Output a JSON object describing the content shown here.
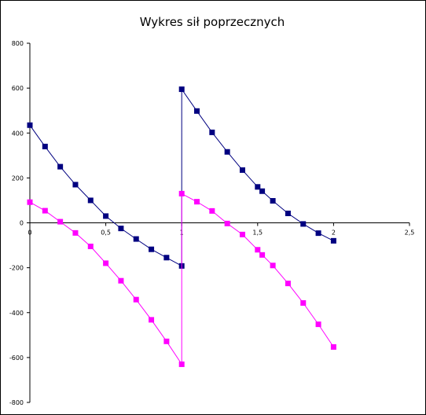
{
  "chart_data": {
    "type": "line",
    "title": "Wykres sił poprzecznych",
    "xlabel": "",
    "ylabel": "",
    "xlim": [
      0,
      2.5
    ],
    "ylim": [
      -800,
      800
    ],
    "x_ticks": [
      0,
      0.5,
      1,
      1.5,
      2,
      2.5
    ],
    "x_tick_labels": [
      "0",
      "0,5",
      "1",
      "1,5",
      "2",
      "2,5"
    ],
    "y_ticks": [
      800,
      600,
      400,
      200,
      0,
      -200,
      -400,
      -600,
      -800
    ],
    "y_tick_labels": [
      "800",
      "600",
      "400",
      "200",
      "0",
      "-200",
      "-400",
      "-600",
      "-800"
    ],
    "grid": false,
    "legend": "none",
    "series": [
      {
        "color": "#000080",
        "marker": "square",
        "points": [
          [
            0,
            435
          ],
          [
            0.1,
            340
          ],
          [
            0.2,
            250
          ],
          [
            0.3,
            170
          ],
          [
            0.4,
            100
          ],
          [
            0.5,
            30
          ],
          [
            0.6,
            -25
          ],
          [
            0.7,
            -72
          ],
          [
            0.8,
            -118
          ],
          [
            0.9,
            -155
          ],
          [
            1,
            -192
          ],
          [
            1,
            595
          ],
          [
            1.1,
            498
          ],
          [
            1.2,
            403
          ],
          [
            1.3,
            316
          ],
          [
            1.4,
            235
          ],
          [
            1.5,
            160
          ],
          [
            1.53,
            141
          ],
          [
            1.6,
            98
          ],
          [
            1.7,
            42
          ],
          [
            1.8,
            -5
          ],
          [
            1.9,
            -46
          ],
          [
            2,
            -80
          ]
        ]
      },
      {
        "color": "#ff00ff",
        "marker": "square",
        "points": [
          [
            0,
            92
          ],
          [
            0.1,
            54
          ],
          [
            0.2,
            5
          ],
          [
            0.3,
            -45
          ],
          [
            0.4,
            -105
          ],
          [
            0.5,
            -180
          ],
          [
            0.6,
            -258
          ],
          [
            0.7,
            -342
          ],
          [
            0.8,
            -432
          ],
          [
            0.9,
            -528
          ],
          [
            1,
            -630
          ],
          [
            1,
            130
          ],
          [
            1.1,
            94
          ],
          [
            1.2,
            53
          ],
          [
            1.3,
            -3
          ],
          [
            1.4,
            -52
          ],
          [
            1.5,
            -120
          ],
          [
            1.53,
            -143
          ],
          [
            1.6,
            -190
          ],
          [
            1.7,
            -270
          ],
          [
            1.8,
            -357
          ],
          [
            1.9,
            -452
          ],
          [
            2,
            -553
          ]
        ]
      }
    ]
  }
}
